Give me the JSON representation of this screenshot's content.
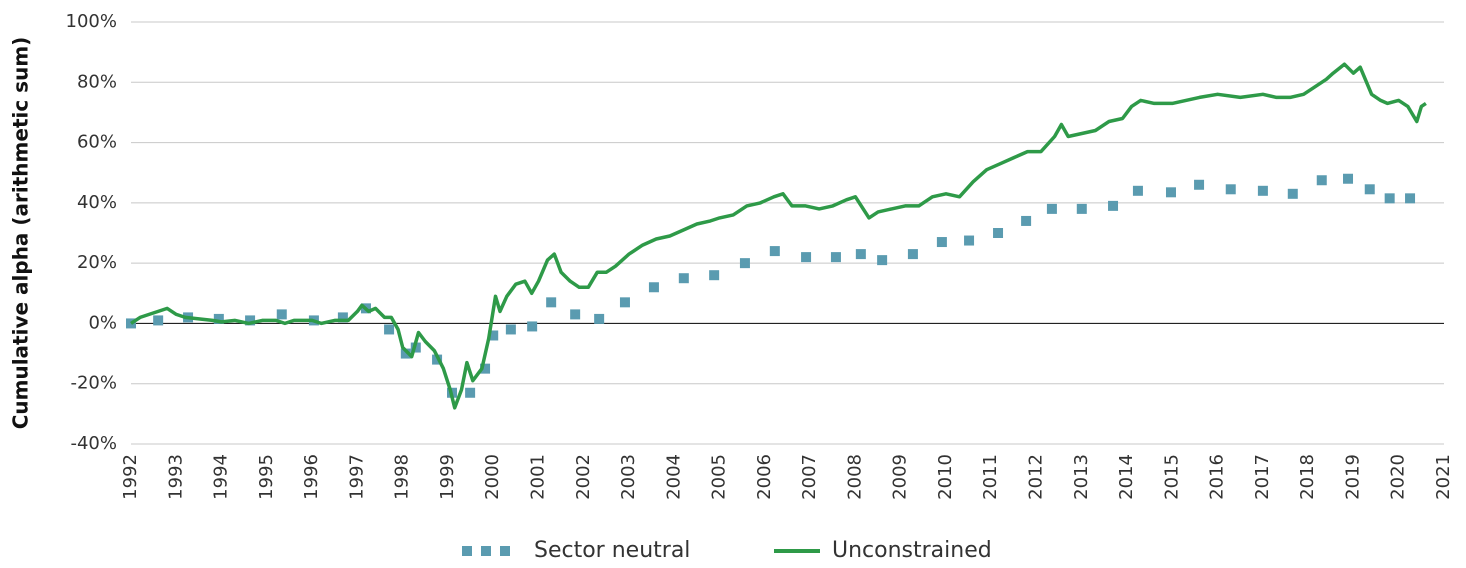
{
  "chart_data": {
    "type": "line",
    "y_label": "Cumulative alpha (arithmetic sum)",
    "xlim": [
      1992,
      2021
    ],
    "xticks": [
      1992,
      1993,
      1994,
      1995,
      1996,
      1997,
      1998,
      1999,
      2000,
      2001,
      2002,
      2003,
      2004,
      2005,
      2006,
      2007,
      2008,
      2009,
      2010,
      2011,
      2012,
      2013,
      2014,
      2015,
      2016,
      2017,
      2018,
      2019,
      2020,
      2021
    ],
    "ylim": [
      -40,
      100
    ],
    "yticks": [
      {
        "value": -40,
        "label": "-40%"
      },
      {
        "value": -20,
        "label": "-20%"
      },
      {
        "value": 0,
        "label": "0%"
      },
      {
        "value": 20,
        "label": "20%"
      },
      {
        "value": 40,
        "label": "40%"
      },
      {
        "value": 60,
        "label": "60%"
      },
      {
        "value": 80,
        "label": "80%"
      },
      {
        "value": 100,
        "label": "100%"
      }
    ],
    "grid": true,
    "legend": "bottom",
    "series": [
      {
        "name": "Sector neutral",
        "color": "#5a9bb0",
        "style": "markers",
        "x": [
          1992.0,
          1992.6,
          1993.26,
          1993.94,
          1994.63,
          1995.33,
          1996.04,
          1996.68,
          1997.19,
          1997.7,
          1998.07,
          1998.29,
          1998.76,
          1999.09,
          1999.49,
          1999.82,
          2000.0,
          2000.39,
          2000.86,
          2001.28,
          2001.81,
          2002.34,
          2002.91,
          2003.55,
          2004.21,
          2004.88,
          2005.56,
          2006.22,
          2006.91,
          2007.57,
          2008.12,
          2008.59,
          2009.27,
          2009.91,
          2010.51,
          2011.15,
          2011.77,
          2012.34,
          2013.0,
          2013.69,
          2014.24,
          2014.97,
          2015.59,
          2016.29,
          2017.0,
          2017.66,
          2018.3,
          2018.88,
          2019.36,
          2019.8,
          2020.25
        ],
        "values": [
          0,
          1,
          2,
          1.5,
          1,
          3,
          1,
          2,
          5,
          -2,
          -10,
          -8,
          -12,
          -23,
          -23,
          -15,
          -4,
          -2,
          -1,
          7,
          3,
          1.5,
          7,
          12,
          15,
          16,
          20,
          24,
          22,
          22,
          23,
          21,
          23,
          27,
          27.5,
          30,
          34,
          38,
          38,
          39,
          44,
          43.5,
          46,
          44.5,
          44,
          43,
          47.5,
          48,
          44.5,
          41.5,
          41.5
        ]
      },
      {
        "name": "Unconstrained",
        "color": "#2e9a48",
        "style": "line",
        "x": [
          1992.0,
          1992.2,
          1992.4,
          1992.6,
          1992.8,
          1993.0,
          1993.2,
          1993.5,
          1993.8,
          1994.0,
          1994.3,
          1994.6,
          1994.9,
          1995.2,
          1995.4,
          1995.6,
          1996.0,
          1996.2,
          1996.5,
          1996.8,
          1997.0,
          1997.1,
          1997.25,
          1997.4,
          1997.6,
          1997.75,
          1997.9,
          1998.0,
          1998.2,
          1998.35,
          1998.5,
          1998.7,
          1998.9,
          1999.05,
          1999.15,
          1999.3,
          1999.42,
          1999.55,
          1999.75,
          1999.9,
          2000.05,
          2000.15,
          2000.3,
          2000.5,
          2000.7,
          2000.85,
          2001.0,
          2001.2,
          2001.35,
          2001.5,
          2001.7,
          2001.9,
          2002.1,
          2002.3,
          2002.5,
          2002.7,
          2003.0,
          2003.3,
          2003.6,
          2003.9,
          2004.2,
          2004.5,
          2004.8,
          2005.0,
          2005.3,
          2005.6,
          2005.9,
          2006.2,
          2006.4,
          2006.6,
          2006.9,
          2007.2,
          2007.5,
          2007.8,
          2008.0,
          2008.3,
          2008.5,
          2008.8,
          2009.1,
          2009.4,
          2009.7,
          2010.0,
          2010.3,
          2010.6,
          2010.9,
          2011.2,
          2011.5,
          2011.8,
          2012.1,
          2012.4,
          2012.55,
          2012.7,
          2013.0,
          2013.3,
          2013.6,
          2013.9,
          2014.1,
          2014.3,
          2014.6,
          2015.0,
          2015.3,
          2015.6,
          2016.0,
          2016.5,
          2017.0,
          2017.3,
          2017.6,
          2017.9,
          2018.1,
          2018.4,
          2018.55,
          2018.8,
          2019.0,
          2019.15,
          2019.4,
          2019.6,
          2019.75,
          2020.0,
          2020.2,
          2020.4,
          2020.5,
          2020.6
        ],
        "values": [
          0,
          2,
          3,
          4,
          5,
          3,
          2,
          1.5,
          1,
          0.5,
          1,
          0,
          1,
          1,
          0,
          1,
          1,
          0,
          1,
          1,
          4,
          6,
          4,
          5,
          2,
          2,
          -2,
          -8,
          -11,
          -3,
          -6,
          -9,
          -15,
          -22,
          -28,
          -22,
          -13,
          -19,
          -15,
          -5,
          9,
          4,
          9,
          13,
          14,
          10,
          14,
          21,
          23,
          17,
          14,
          12,
          12,
          17,
          17,
          19,
          23,
          26,
          28,
          29,
          31,
          33,
          34,
          35,
          36,
          39,
          40,
          42,
          43,
          39,
          39,
          38,
          39,
          41,
          42,
          35,
          37,
          38,
          39,
          39,
          42,
          43,
          42,
          47,
          51,
          53,
          55,
          57,
          57,
          62,
          66,
          62,
          63,
          64,
          67,
          68,
          72,
          74,
          73,
          73,
          74,
          75,
          76,
          75,
          76,
          75,
          75,
          76,
          78,
          81,
          83,
          86,
          83,
          85,
          76,
          74,
          73,
          74,
          72,
          67,
          72,
          73
        ]
      }
    ]
  }
}
